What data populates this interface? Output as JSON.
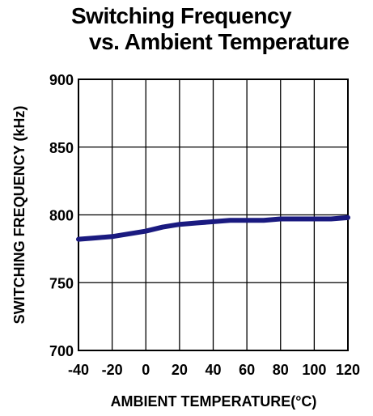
{
  "chart_data": {
    "type": "line",
    "title_line1": "Switching Frequency",
    "title_line2": "vs. Ambient Temperature",
    "xlabel": "AMBIENT TEMPERATURE(°C)",
    "ylabel": "SWITCHING FREQUENCY (kHz)",
    "xlim": [
      -40,
      120
    ],
    "ylim": [
      700,
      900
    ],
    "xticks": [
      -40,
      -20,
      0,
      20,
      40,
      60,
      80,
      100,
      120
    ],
    "yticks": [
      700,
      750,
      800,
      850,
      900
    ],
    "grid": true,
    "line_color": "#1a1a80",
    "series": [
      {
        "x": [
          -40,
          -30,
          -20,
          -10,
          0,
          10,
          20,
          30,
          40,
          50,
          60,
          70,
          80,
          90,
          100,
          110,
          120
        ],
        "y": [
          782,
          783,
          784,
          786,
          788,
          791,
          793,
          794,
          795,
          796,
          796,
          796,
          797,
          797,
          797,
          797,
          798
        ]
      }
    ]
  }
}
